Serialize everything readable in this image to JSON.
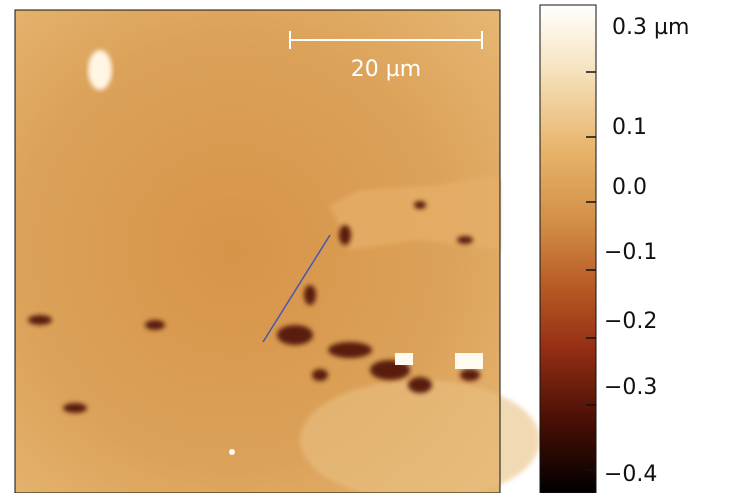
{
  "image": {
    "scale_bar": "20 µm"
  },
  "colorbar": {
    "labels": [
      "0.3 µm",
      "0.1",
      "0.0",
      "−0.1",
      "−0.2",
      "−0.3",
      "−0.4"
    ]
  }
}
